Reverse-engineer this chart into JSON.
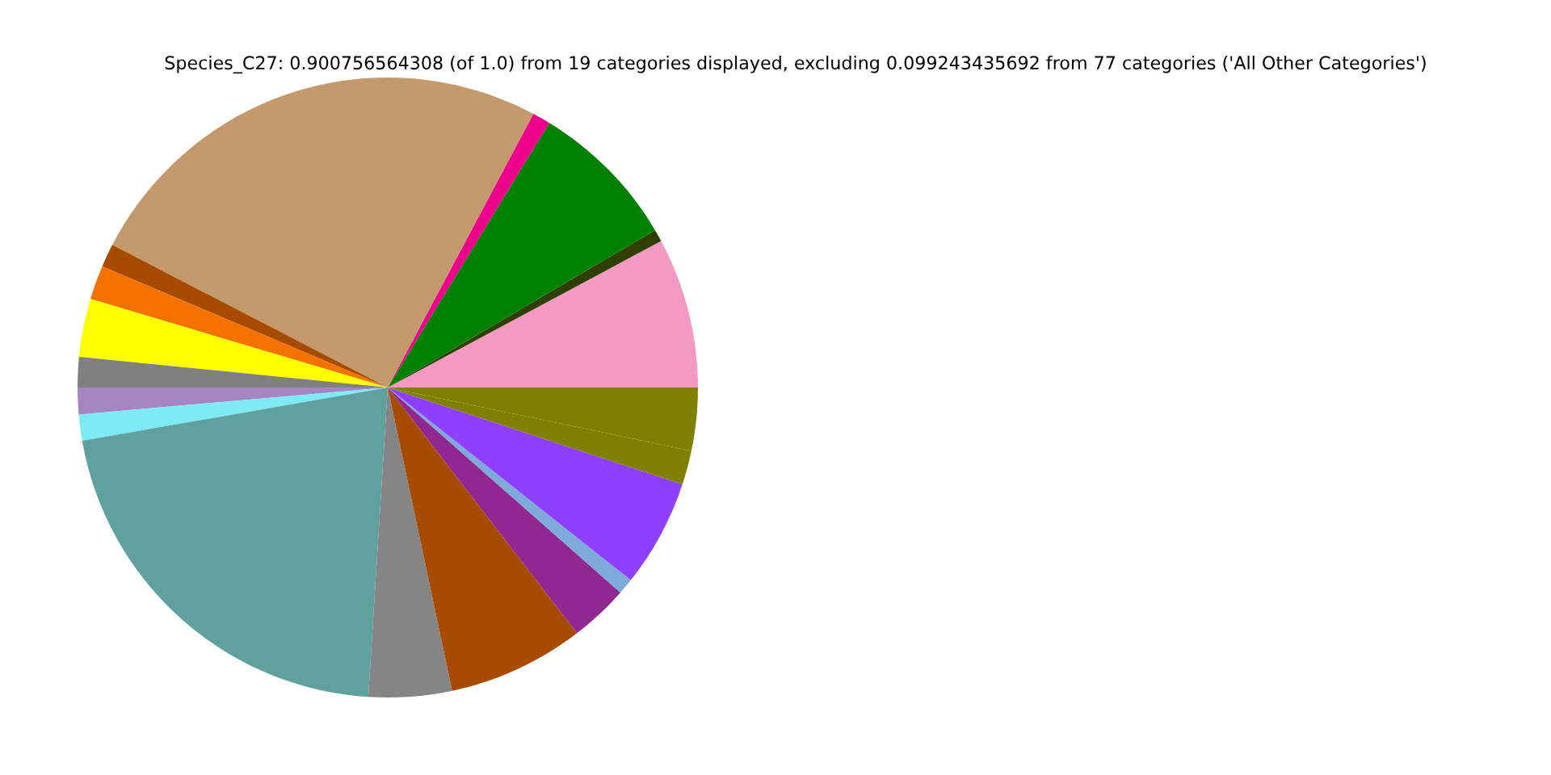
{
  "chart_data": {
    "type": "pie",
    "title": "Species_C27: 0.900756564308 (of 1.0) from 19 categories displayed, excluding 0.099243435692 from 77 categories ('All Other Categories')",
    "categories": [
      null,
      null,
      null,
      null,
      null,
      null,
      null,
      null,
      null,
      null,
      null,
      null,
      null,
      null,
      null,
      null,
      null,
      null,
      null
    ],
    "values": [
      7.83,
      0.64,
      7.81,
      0.94,
      25.17,
      1.22,
      1.78,
      3.03,
      1.58,
      1.39,
      1.36,
      21.25,
      4.33,
      7.11,
      3.06,
      0.83,
      5.61,
      1.78,
      3.28
    ],
    "colors": [
      "#f49ac2",
      "#2f3f00",
      "#008000",
      "#ec008c",
      "#c49a6c",
      "#a64b00",
      "#f47300",
      "#ffff00",
      "#808080",
      "#a586c2",
      "#7eeaf4",
      "#5ea19e",
      "#858585",
      "#a64b00",
      "#912891",
      "#7eaad9",
      "#8f3fff",
      "#808000",
      "#808000"
    ]
  }
}
